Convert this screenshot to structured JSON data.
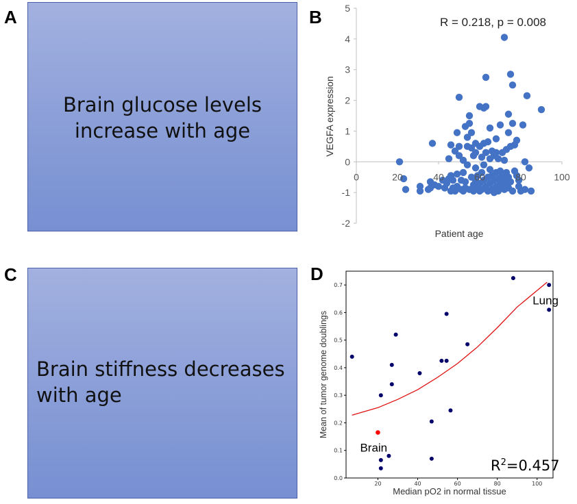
{
  "panels": {
    "a": {
      "letter": "A",
      "text_line1": "Brain glucose levels",
      "text_line2": "increase with age"
    },
    "b": {
      "letter": "B"
    },
    "c": {
      "letter": "C",
      "text_line1": "Brain stiffness decreases",
      "text_line2": "with age"
    },
    "d": {
      "letter": "D"
    }
  },
  "colors": {
    "box_top": "#a2b1df",
    "box_bottom": "#7790d2",
    "scatter_b": "#4472c4",
    "scatter_d": "#00006b",
    "highlight": "#ff0000",
    "fit_line": "#e01010"
  },
  "chart_data": [
    {
      "type": "scatter",
      "panel": "B",
      "annotation": "R = 0.218, p = 0.008",
      "xlabel": "Patient age",
      "ylabel": "VEGFA expression",
      "xlim": [
        0,
        100
      ],
      "ylim": [
        -2,
        5
      ],
      "xticks": [
        "0",
        "20",
        "40",
        "60",
        "80",
        "100"
      ],
      "yticks": [
        "-2",
        "-1",
        "0",
        "1",
        "2",
        "3",
        "4",
        "5"
      ],
      "points": [
        [
          21,
          0
        ],
        [
          23,
          -0.55
        ],
        [
          24,
          -0.9
        ],
        [
          31,
          -0.8
        ],
        [
          31,
          -0.95
        ],
        [
          35,
          -0.9
        ],
        [
          36,
          -0.65
        ],
        [
          36,
          -0.85
        ],
        [
          37,
          0.6
        ],
        [
          38,
          -0.75
        ],
        [
          40,
          -0.8
        ],
        [
          42,
          -0.6
        ],
        [
          43,
          -0.85
        ],
        [
          44,
          -0.7
        ],
        [
          45,
          0.1
        ],
        [
          45,
          -0.55
        ],
        [
          46,
          -0.95
        ],
        [
          46,
          -0.45
        ],
        [
          46,
          0.55
        ],
        [
          47,
          -0.6
        ],
        [
          47,
          -0.85
        ],
        [
          48,
          -0.95
        ],
        [
          48,
          0.35
        ],
        [
          49,
          -0.8
        ],
        [
          49,
          0.95
        ],
        [
          49,
          -0.4
        ],
        [
          50,
          0.2
        ],
        [
          50,
          0.5
        ],
        [
          50,
          2.1
        ],
        [
          51,
          -0.9
        ],
        [
          51,
          -0.6
        ],
        [
          52,
          0.05
        ],
        [
          52,
          -0.95
        ],
        [
          52,
          -0.35
        ],
        [
          53,
          -0.85
        ],
        [
          53,
          1.15
        ],
        [
          53,
          -0.65
        ],
        [
          54,
          0.5
        ],
        [
          54,
          0.8
        ],
        [
          54,
          -0.1
        ],
        [
          55,
          1.5
        ],
        [
          55,
          -0.9
        ],
        [
          55,
          1.25
        ],
        [
          56,
          0.45
        ],
        [
          56,
          -0.5
        ],
        [
          56,
          0.95
        ],
        [
          57,
          -0.75
        ],
        [
          57,
          0.2
        ],
        [
          57,
          -0.95
        ],
        [
          58,
          0.6
        ],
        [
          58,
          -0.2
        ],
        [
          58,
          -0.6
        ],
        [
          58,
          0.3
        ],
        [
          59,
          -0.85
        ],
        [
          59,
          -0.45
        ],
        [
          60,
          -0.95
        ],
        [
          60,
          0.5
        ],
        [
          60,
          1.8
        ],
        [
          60,
          -0.7
        ],
        [
          61,
          0.15
        ],
        [
          61,
          -0.35
        ],
        [
          61,
          -0.9
        ],
        [
          62,
          -0.6
        ],
        [
          62,
          0.6
        ],
        [
          62,
          1.75
        ],
        [
          62,
          -0.1
        ],
        [
          63,
          2.75
        ],
        [
          63,
          -0.8
        ],
        [
          63,
          0.3
        ],
        [
          63,
          1.8
        ],
        [
          64,
          -0.5
        ],
        [
          64,
          0.65
        ],
        [
          64,
          -0.95
        ],
        [
          65,
          -0.25
        ],
        [
          65,
          1.1
        ],
        [
          65,
          -0.7
        ],
        [
          65,
          0.1
        ],
        [
          66,
          -0.9
        ],
        [
          66,
          -0.45
        ],
        [
          66,
          0.35
        ],
        [
          67,
          -0.6
        ],
        [
          67,
          -1.0
        ],
        [
          67,
          0.2
        ],
        [
          68,
          -0.35
        ],
        [
          68,
          0.3
        ],
        [
          68,
          -0.8
        ],
        [
          68,
          0.75
        ],
        [
          69,
          -0.55
        ],
        [
          69,
          -0.95
        ],
        [
          69,
          0.1
        ],
        [
          70,
          -0.65
        ],
        [
          70,
          1.2
        ],
        [
          70,
          -0.3
        ],
        [
          70,
          -0.85
        ],
        [
          71,
          -0.75
        ],
        [
          71,
          0.3
        ],
        [
          71,
          -0.45
        ],
        [
          72,
          -0.6
        ],
        [
          72,
          0.05
        ],
        [
          72,
          4.05
        ],
        [
          72,
          -0.9
        ],
        [
          73,
          -0.35
        ],
        [
          73,
          -0.7
        ],
        [
          73,
          0.4
        ],
        [
          74,
          1.55
        ],
        [
          74,
          -0.5
        ],
        [
          74,
          0.95
        ],
        [
          74,
          -0.85
        ],
        [
          75,
          2.85
        ],
        [
          75,
          0.5
        ],
        [
          75,
          -0.65
        ],
        [
          76,
          2.5
        ],
        [
          76,
          1.25
        ],
        [
          76,
          -0.95
        ],
        [
          77,
          0.55
        ],
        [
          77,
          -0.3
        ],
        [
          78,
          -0.45
        ],
        [
          78,
          0.7
        ],
        [
          79,
          -0.8
        ],
        [
          79,
          -0.6
        ],
        [
          80,
          -0.95
        ],
        [
          81,
          1.2
        ],
        [
          82,
          0
        ],
        [
          82,
          -0.9
        ],
        [
          83,
          2.15
        ],
        [
          84,
          -0.2
        ],
        [
          85,
          -0.95
        ],
        [
          90,
          1.7
        ]
      ]
    },
    {
      "type": "scatter",
      "panel": "D",
      "xlabel": "Median pO2 in normal tissue",
      "ylabel": "Mean of tumor genome doublings",
      "xlim": [
        4,
        108
      ],
      "ylim": [
        0,
        0.75
      ],
      "xticks": [
        "20",
        "40",
        "60",
        "80",
        "100"
      ],
      "yticks": [
        "0.0",
        "0.1",
        "0.2",
        "0.3",
        "0.4",
        "0.5",
        "0.6",
        "0.7"
      ],
      "annotation_r2_base": "R",
      "annotation_r2_sup": "2",
      "annotation_r2_value": "=0.457",
      "labels": [
        {
          "text": "Brain",
          "point": [
            20,
            0.165
          ]
        },
        {
          "text": "Lung",
          "point": [
            106,
            0.61
          ]
        }
      ],
      "highlight_point": [
        20,
        0.165
      ],
      "points": [
        [
          7,
          0.44
        ],
        [
          21.5,
          0.3
        ],
        [
          21.5,
          0.065
        ],
        [
          21.5,
          0.035
        ],
        [
          25.5,
          0.08
        ],
        [
          27,
          0.41
        ],
        [
          27,
          0.34
        ],
        [
          29,
          0.52
        ],
        [
          41,
          0.38
        ],
        [
          47,
          0.205
        ],
        [
          47,
          0.07
        ],
        [
          52,
          0.425
        ],
        [
          54.5,
          0.595
        ],
        [
          54.5,
          0.425
        ],
        [
          56.5,
          0.245
        ],
        [
          65,
          0.485
        ],
        [
          88,
          0.725
        ],
        [
          106,
          0.7
        ],
        [
          106,
          0.61
        ]
      ],
      "fit_curve": [
        [
          7,
          0.228
        ],
        [
          20,
          0.255
        ],
        [
          30,
          0.285
        ],
        [
          40,
          0.32
        ],
        [
          50,
          0.365
        ],
        [
          60,
          0.415
        ],
        [
          70,
          0.475
        ],
        [
          80,
          0.545
        ],
        [
          90,
          0.62
        ],
        [
          105,
          0.71
        ]
      ]
    }
  ]
}
